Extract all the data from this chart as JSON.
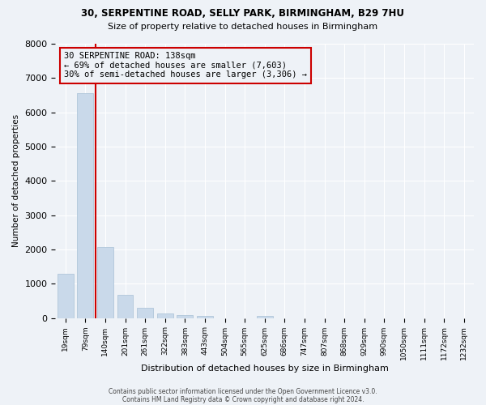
{
  "title": "30, SERPENTINE ROAD, SELLY PARK, BIRMINGHAM, B29 7HU",
  "subtitle": "Size of property relative to detached houses in Birmingham",
  "xlabel": "Distribution of detached houses by size in Birmingham",
  "ylabel": "Number of detached properties",
  "bar_labels": [
    "19sqm",
    "79sqm",
    "140sqm",
    "201sqm",
    "261sqm",
    "322sqm",
    "383sqm",
    "443sqm",
    "504sqm",
    "565sqm",
    "625sqm",
    "686sqm",
    "747sqm",
    "807sqm",
    "868sqm",
    "929sqm",
    "990sqm",
    "1050sqm",
    "1111sqm",
    "1172sqm",
    "1232sqm"
  ],
  "bar_values": [
    1300,
    6550,
    2070,
    670,
    290,
    140,
    90,
    55,
    0,
    0,
    65,
    0,
    0,
    0,
    0,
    0,
    0,
    0,
    0,
    0,
    0
  ],
  "bar_color": "#c9d9ea",
  "bar_edgecolor": "#a8c0d6",
  "ylim": [
    0,
    8000
  ],
  "vline_x": 1.5,
  "vline_color": "#cc0000",
  "annotation_title": "30 SERPENTINE ROAD: 138sqm",
  "annotation_line1": "← 69% of detached houses are smaller (7,603)",
  "annotation_line2": "30% of semi-detached houses are larger (3,306) →",
  "annotation_box_color": "#cc0000",
  "footer1": "Contains HM Land Registry data © Crown copyright and database right 2024.",
  "footer2": "Contains public sector information licensed under the Open Government Licence v3.0.",
  "bg_color": "#eef2f7",
  "grid_color": "#ffffff"
}
